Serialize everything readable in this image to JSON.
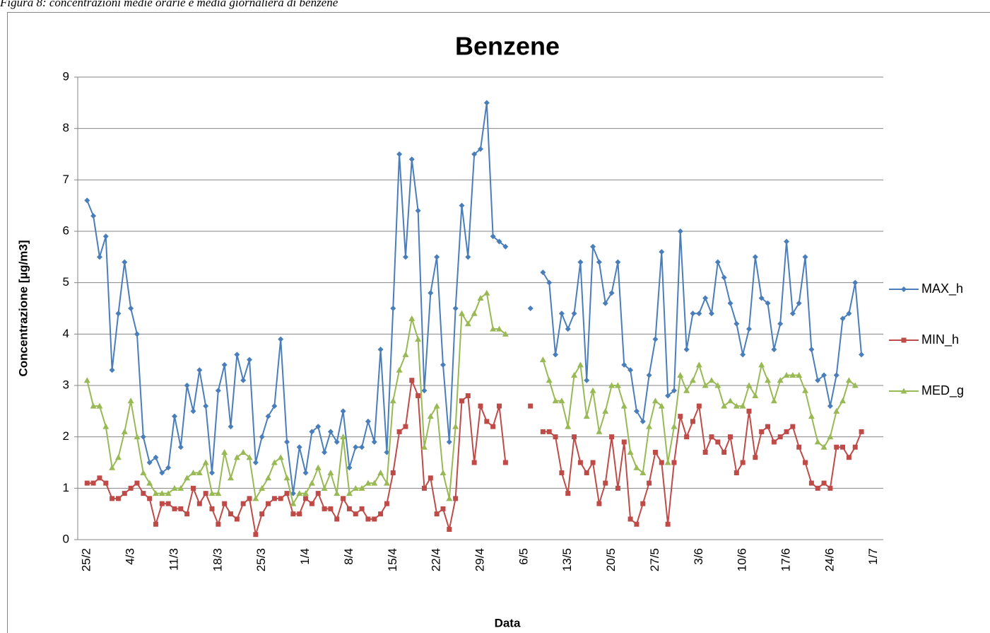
{
  "caption": "Figura 8: concentrazioni medie orarie e media giornaliera di benzene",
  "chart_data": {
    "type": "line",
    "title": "Benzene",
    "x_label": "Data",
    "y_label": "Concentrazione [µg/m3]",
    "categories": [
      "25/2",
      null,
      null,
      null,
      null,
      null,
      null,
      "4/3",
      null,
      null,
      null,
      null,
      null,
      null,
      "11/3",
      null,
      null,
      null,
      null,
      null,
      null,
      "18/3",
      null,
      null,
      null,
      null,
      null,
      null,
      "25/3",
      null,
      null,
      null,
      null,
      null,
      null,
      "1/4",
      null,
      null,
      null,
      null,
      null,
      null,
      "8/4",
      null,
      null,
      null,
      null,
      null,
      null,
      "15/4",
      null,
      null,
      null,
      null,
      null,
      null,
      "22/4",
      null,
      null,
      null,
      null,
      null,
      null,
      "29/4",
      null,
      null,
      null,
      null,
      null,
      null,
      "6/5",
      null,
      null,
      null,
      null,
      null,
      null,
      "13/5",
      null,
      null,
      null,
      null,
      null,
      null,
      "20/5",
      null,
      null,
      null,
      null,
      null,
      null,
      "27/5",
      null,
      null,
      null,
      null,
      null,
      null,
      "3/6",
      null,
      null,
      null,
      null,
      null,
      null,
      "10/6",
      null,
      null,
      null,
      null,
      null,
      null,
      "17/6",
      null,
      null,
      null,
      null,
      null,
      null,
      "24/6",
      null,
      null,
      null,
      null,
      null,
      null,
      "1/7"
    ],
    "series": [
      {
        "name": "MAX_h",
        "color": "#4a7ebb",
        "marker": "diamond",
        "values": [
          6.6,
          6.3,
          5.5,
          5.9,
          3.3,
          4.4,
          5.4,
          4.5,
          4.0,
          2.0,
          1.5,
          1.6,
          1.3,
          1.4,
          2.4,
          1.8,
          3.0,
          2.5,
          3.3,
          2.6,
          1.3,
          2.9,
          3.4,
          2.2,
          3.6,
          3.1,
          3.5,
          1.5,
          2.0,
          2.4,
          2.6,
          3.9,
          1.9,
          0.9,
          1.8,
          1.3,
          2.1,
          2.2,
          1.7,
          2.1,
          1.9,
          2.5,
          1.4,
          1.8,
          1.8,
          2.3,
          1.9,
          3.7,
          1.7,
          4.5,
          7.5,
          5.5,
          7.4,
          6.4,
          2.9,
          4.8,
          5.5,
          3.4,
          1.9,
          4.5,
          6.5,
          5.5,
          7.5,
          7.6,
          8.5,
          5.9,
          5.8,
          5.7,
          null,
          null,
          null,
          4.5,
          null,
          5.2,
          5.0,
          3.6,
          4.4,
          4.1,
          4.4,
          5.4,
          3.1,
          5.7,
          5.4,
          4.6,
          4.8,
          5.4,
          3.4,
          3.3,
          2.5,
          2.3,
          3.2,
          3.9,
          5.6,
          2.8,
          2.9,
          6.0,
          3.7,
          4.4,
          4.4,
          4.7,
          4.4,
          5.4,
          5.1,
          4.6,
          4.2,
          3.6,
          4.1,
          5.5,
          4.7,
          4.6,
          3.7,
          4.2,
          5.8,
          4.4,
          4.6,
          5.5,
          3.7,
          3.1,
          3.2,
          2.6,
          3.2,
          4.3,
          4.4,
          5.0,
          3.6,
          null,
          null
        ]
      },
      {
        "name": "MIN_h",
        "color": "#be4b48",
        "marker": "square",
        "values": [
          1.1,
          1.1,
          1.2,
          1.1,
          0.8,
          0.8,
          0.9,
          1.0,
          1.1,
          0.9,
          0.8,
          0.3,
          0.7,
          0.7,
          0.6,
          0.6,
          0.5,
          1.0,
          0.7,
          0.9,
          0.6,
          0.3,
          0.7,
          0.5,
          0.4,
          0.7,
          0.8,
          0.1,
          0.5,
          0.7,
          0.8,
          0.8,
          0.9,
          0.5,
          0.5,
          0.8,
          0.7,
          0.9,
          0.6,
          0.6,
          0.4,
          0.8,
          0.6,
          0.5,
          0.6,
          0.4,
          0.4,
          0.5,
          0.7,
          1.3,
          2.1,
          2.2,
          3.1,
          2.8,
          1.0,
          1.2,
          0.5,
          0.6,
          0.2,
          0.8,
          2.7,
          2.8,
          1.5,
          2.6,
          2.3,
          2.2,
          2.6,
          1.5,
          null,
          null,
          null,
          2.6,
          null,
          2.1,
          2.1,
          2.0,
          1.3,
          0.9,
          2.0,
          1.5,
          1.3,
          1.5,
          0.7,
          1.1,
          2.0,
          1.0,
          1.9,
          0.4,
          0.3,
          0.7,
          1.1,
          1.7,
          1.5,
          0.3,
          1.5,
          2.4,
          2.0,
          2.3,
          2.6,
          1.7,
          2.0,
          1.9,
          1.7,
          2.0,
          1.3,
          1.5,
          2.5,
          1.6,
          2.1,
          2.2,
          1.9,
          2.0,
          2.1,
          2.2,
          1.8,
          1.5,
          1.1,
          1.0,
          1.1,
          1.0,
          1.8,
          1.8,
          1.6,
          1.8,
          2.1,
          null,
          null
        ]
      },
      {
        "name": "MED_g",
        "color": "#98b954",
        "marker": "triangle",
        "values": [
          3.1,
          2.6,
          2.6,
          2.2,
          1.4,
          1.6,
          2.1,
          2.7,
          2.0,
          1.3,
          1.1,
          0.9,
          0.9,
          0.9,
          1.0,
          1.0,
          1.2,
          1.3,
          1.3,
          1.5,
          0.9,
          0.9,
          1.7,
          1.2,
          1.6,
          1.7,
          1.6,
          0.8,
          1.0,
          1.2,
          1.5,
          1.6,
          1.2,
          0.7,
          0.9,
          0.9,
          1.1,
          1.4,
          1.0,
          1.3,
          0.9,
          2.0,
          0.9,
          1.0,
          1.0,
          1.1,
          1.1,
          1.3,
          1.1,
          2.7,
          3.3,
          3.6,
          4.3,
          3.9,
          1.8,
          2.4,
          2.6,
          1.3,
          0.8,
          2.2,
          4.4,
          4.2,
          4.4,
          4.7,
          4.8,
          4.1,
          4.1,
          4.0,
          null,
          null,
          null,
          null,
          null,
          3.5,
          3.1,
          2.7,
          2.7,
          2.2,
          3.2,
          3.4,
          2.4,
          2.9,
          2.1,
          2.5,
          3.0,
          3.0,
          2.6,
          1.7,
          1.4,
          1.3,
          2.2,
          2.7,
          2.6,
          1.5,
          2.2,
          3.2,
          2.9,
          3.1,
          3.4,
          3.0,
          3.1,
          3.0,
          2.6,
          2.7,
          2.6,
          2.6,
          3.0,
          2.8,
          3.4,
          3.1,
          2.7,
          3.1,
          3.2,
          3.2,
          3.2,
          2.9,
          2.4,
          1.9,
          1.8,
          2.0,
          2.5,
          2.7,
          3.1,
          3.0,
          null,
          null,
          null
        ]
      }
    ],
    "ylim": [
      0,
      9
    ],
    "yticks": [
      0,
      1,
      2,
      3,
      4,
      5,
      6,
      7,
      8,
      9
    ],
    "grid": true,
    "legend": "right"
  }
}
